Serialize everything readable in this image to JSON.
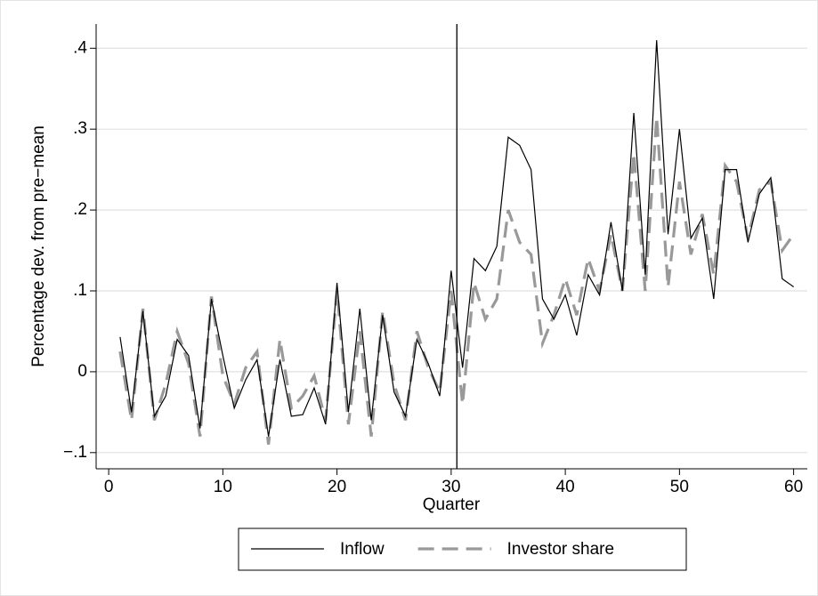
{
  "chart_data": {
    "type": "line",
    "x_label": "Quarter",
    "y_label": "Percentage dev. from pre−mean",
    "x": [
      1,
      2,
      3,
      4,
      5,
      6,
      7,
      8,
      9,
      10,
      11,
      12,
      13,
      14,
      15,
      16,
      17,
      18,
      19,
      20,
      21,
      22,
      23,
      24,
      25,
      26,
      27,
      28,
      29,
      30,
      31,
      32,
      33,
      34,
      35,
      36,
      37,
      38,
      39,
      40,
      41,
      42,
      43,
      44,
      45,
      46,
      47,
      48,
      49,
      50,
      51,
      52,
      53,
      54,
      55,
      56,
      57,
      58,
      59,
      60
    ],
    "series": [
      {
        "name": "Inflow",
        "color": "#000000",
        "dashed": false,
        "values": [
          0.043,
          -0.05,
          0.075,
          -0.055,
          -0.03,
          0.04,
          0.02,
          -0.07,
          0.09,
          0.02,
          -0.045,
          -0.01,
          0.015,
          -0.08,
          0.015,
          -0.055,
          -0.053,
          -0.02,
          -0.065,
          0.11,
          -0.05,
          0.078,
          -0.06,
          0.07,
          -0.025,
          -0.055,
          0.04,
          0.01,
          -0.03,
          0.125,
          0.005,
          0.14,
          0.125,
          0.155,
          0.29,
          0.28,
          0.25,
          0.09,
          0.065,
          0.095,
          0.045,
          0.12,
          0.095,
          0.185,
          0.1,
          0.32,
          0.12,
          0.41,
          0.17,
          0.3,
          0.165,
          0.19,
          0.09,
          0.25,
          0.25,
          0.16,
          0.22,
          0.24,
          0.115,
          0.105
        ]
      },
      {
        "name": "Investor share",
        "color": "#999999",
        "dashed": true,
        "values": [
          0.025,
          -0.06,
          0.078,
          -0.06,
          -0.015,
          0.05,
          0.01,
          -0.08,
          0.093,
          -0.005,
          -0.04,
          0.005,
          0.025,
          -0.09,
          0.04,
          -0.045,
          -0.03,
          -0.005,
          -0.06,
          0.1,
          -0.065,
          0.05,
          -0.08,
          0.075,
          -0.015,
          -0.06,
          0.05,
          0.005,
          -0.025,
          0.1,
          -0.04,
          0.11,
          0.065,
          0.09,
          0.2,
          0.16,
          0.145,
          0.035,
          0.07,
          0.115,
          0.07,
          0.14,
          0.1,
          0.17,
          0.1,
          0.27,
          0.1,
          0.315,
          0.105,
          0.235,
          0.145,
          0.195,
          0.12,
          0.255,
          0.235,
          0.165,
          0.225,
          0.235,
          0.15,
          0.17
        ]
      }
    ],
    "vline": 30.5,
    "xlim": [
      -1.1,
      61.2
    ],
    "ylim": [
      -0.12,
      0.43
    ],
    "xticks": [
      0,
      10,
      20,
      30,
      40,
      50,
      60
    ],
    "yticks": [
      {
        "value": -0.1,
        "label": "−.1"
      },
      0,
      {
        "value": 0.1,
        "label": ".1"
      },
      {
        "value": 0.2,
        "label": ".2"
      },
      {
        "value": 0.3,
        "label": ".3"
      },
      {
        "value": 0.4,
        "label": ".4"
      }
    ],
    "grid": true,
    "legend": "bottom"
  }
}
